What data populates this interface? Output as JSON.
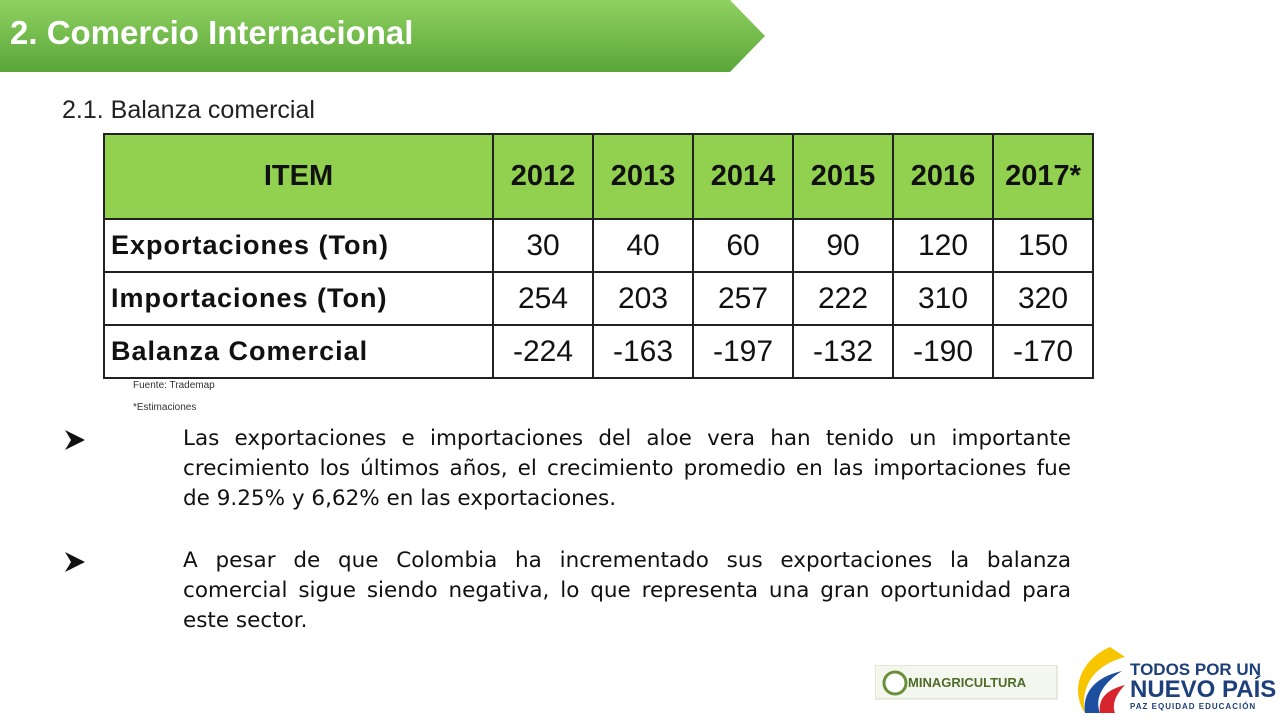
{
  "header": {
    "title": "2. Comercio Internacional"
  },
  "subtitle": "2.1. Balanza comercial",
  "table": {
    "header": [
      "ITEM",
      "2012",
      "2013",
      "2014",
      "2015",
      "2016",
      "2017*"
    ],
    "rows": [
      [
        "Exportaciones (Ton)",
        30,
        40,
        60,
        90,
        120,
        150
      ],
      [
        "Importaciones (Ton)",
        254,
        203,
        257,
        222,
        310,
        320
      ],
      [
        "Balanza Comercial",
        -224,
        -163,
        -197,
        -132,
        -190,
        -170
      ]
    ]
  },
  "notes": [
    "Fuente: Trademap",
    "*Estimaciones"
  ],
  "bullets": [
    "Las exportaciones e importaciones del aloe vera han tenido un importante crecimiento los últimos años, el crecimiento promedio en las importaciones fue de 9.25% y 6,62% en las exportaciones.",
    "A pesar de que Colombia ha incrementado sus exportaciones la balanza comercial sigue siendo negativa, lo que representa una gran oportunidad para este sector."
  ],
  "footer": {
    "ministry": "MINAGRICULTURA",
    "slogan_top": "TODOS POR UN",
    "slogan_main": "NUEVO PAÍS",
    "slogan_sub": "PAZ  EQUIDAD  EDUCACIÓN"
  }
}
